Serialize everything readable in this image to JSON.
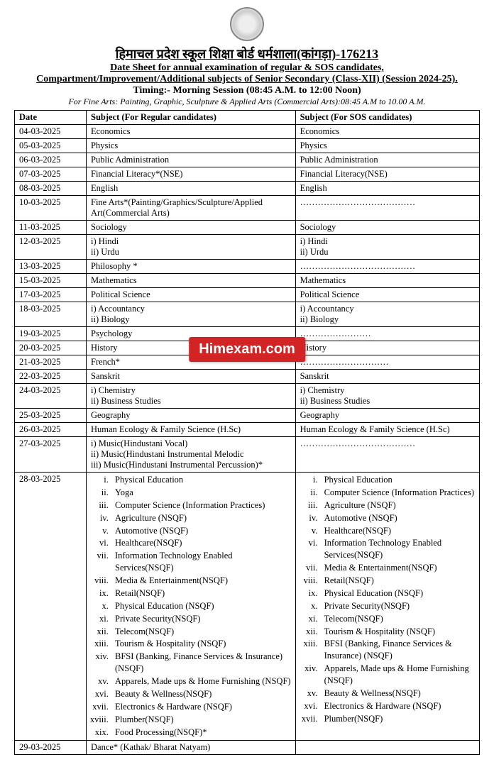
{
  "header": {
    "org_hi": "हिमाचल प्रदेश स्कूल शिक्षा बोर्ड धर्मशाला(कांगड़ा)-176213",
    "title1": "Date Sheet for annual examination of regular & SOS candidates,",
    "title2": "Compartment/Improvement/Additional subjects of Senior Secondary (Class-XII) (Session 2024-25).",
    "timing": "Timing:-   Morning Session (08:45 A.M. to 12:00 Noon)",
    "note": "For Fine Arts: Painting, Graphic, Sculpture & Applied Arts (Commercial Arts):08:45 A.M to 10.00 A.M."
  },
  "watermark": "Himexam.com",
  "table": {
    "head": {
      "date": "Date",
      "reg": "Subject (For Regular candidates)",
      "sos": "Subject (For SOS candidates)"
    },
    "rows": [
      {
        "date": "04-03-2025",
        "reg": "Economics",
        "sos": "Economics"
      },
      {
        "date": "05-03-2025",
        "reg": "Physics",
        "sos": "Physics"
      },
      {
        "date": "06-03-2025",
        "reg": "Public Administration",
        "sos": "Public Administration"
      },
      {
        "date": "07-03-2025",
        "reg": "Financial Literacy*(NSE)",
        "sos": "Financial Literacy(NSE)"
      },
      {
        "date": "08-03-2025",
        "reg": "English",
        "sos": "English"
      },
      {
        "date": "10-03-2025",
        "reg": "Fine Arts*(Painting/Graphics/Sculpture/Applied Art(Commercial Arts)",
        "sos": "…………………………………"
      },
      {
        "date": "11-03-2025",
        "reg": "Sociology",
        "sos": "Sociology"
      },
      {
        "date": "12-03-2025",
        "reg": "i)  Hindi\nii)  Urdu",
        "sos": "i)  Hindi\nii)  Urdu"
      },
      {
        "date": "13-03-2025",
        "reg": "Philosophy *",
        "sos": "…………………………………"
      },
      {
        "date": "15-03-2025",
        "reg": "Mathematics",
        "sos": "Mathematics"
      },
      {
        "date": "17-03-2025",
        "reg": "Political Science",
        "sos": "Political Science"
      },
      {
        "date": "18-03-2025",
        "reg": "i) Accountancy\nii) Biology",
        "sos": "i) Accountancy\nii) Biology"
      },
      {
        "date": "19-03-2025",
        "reg": "Psychology",
        "sos": "……………………"
      },
      {
        "date": "20-03-2025",
        "reg": "History",
        "sos": "History"
      },
      {
        "date": "21-03-2025",
        "reg": "French*",
        "sos": "…………………………"
      },
      {
        "date": "22-03-2025",
        "reg": "Sanskrit",
        "sos": "Sanskrit"
      },
      {
        "date": "24-03-2025",
        "reg": "i) Chemistry\nii) Business Studies",
        "sos": "i) Chemistry\nii) Business Studies"
      },
      {
        "date": "25-03-2025",
        "reg": "Geography",
        "sos": "Geography"
      },
      {
        "date": "26-03-2025",
        "reg": "Human Ecology & Family Science (H.Sc)",
        "sos": "Human Ecology & Family Science (H.Sc)"
      },
      {
        "date": "27-03-2025",
        "reg": "i)  Music(Hindustani Vocal)\nii)  Music(Hindustani Instrumental Melodic\niii)  Music(Hindustani Instrumental Percussion)*",
        "sos": "…………………………………"
      },
      {
        "date": "28-03-2025",
        "reg_list": [
          "Physical Education",
          "Yoga",
          "Computer Science (Information Practices)",
          "Agriculture (NSQF)",
          "Automotive (NSQF)",
          "Healthcare(NSQF)",
          "Information Technology Enabled Services(NSQF)",
          "Media & Entertainment(NSQF)",
          "Retail(NSQF)",
          "Physical Education (NSQF)",
          "Private Security(NSQF)",
          "Telecom(NSQF)",
          "Tourism & Hospitality (NSQF)",
          "BFSI (Banking, Finance Services & Insurance) (NSQF)",
          "Apparels, Made ups & Home Furnishing (NSQF)",
          "Beauty & Wellness(NSQF)",
          "Electronics & Hardware (NSQF)",
          "Plumber(NSQF)",
          "Food Processing(NSQF)*"
        ],
        "sos_list": [
          "Physical Education",
          "Computer Science (Information Practices)",
          "Agriculture (NSQF)",
          "Automotive (NSQF)",
          "Healthcare(NSQF)",
          "Information Technology Enabled Services(NSQF)",
          "Media & Entertainment(NSQF)",
          "Retail(NSQF)",
          "Physical Education (NSQF)",
          "Private Security(NSQF)",
          "Telecom(NSQF)",
          "Tourism & Hospitality (NSQF)",
          "BFSI (Banking, Finance Services & Insurance) (NSQF)",
          "Apparels, Made ups & Home Furnishing (NSQF)",
          "Beauty & Wellness(NSQF)",
          "Electronics & Hardware (NSQF)",
          "Plumber(NSQF)"
        ]
      },
      {
        "date": "29-03-2025",
        "reg": "Dance* (Kathak/ Bharat Natyam)",
        "sos": ""
      }
    ]
  }
}
